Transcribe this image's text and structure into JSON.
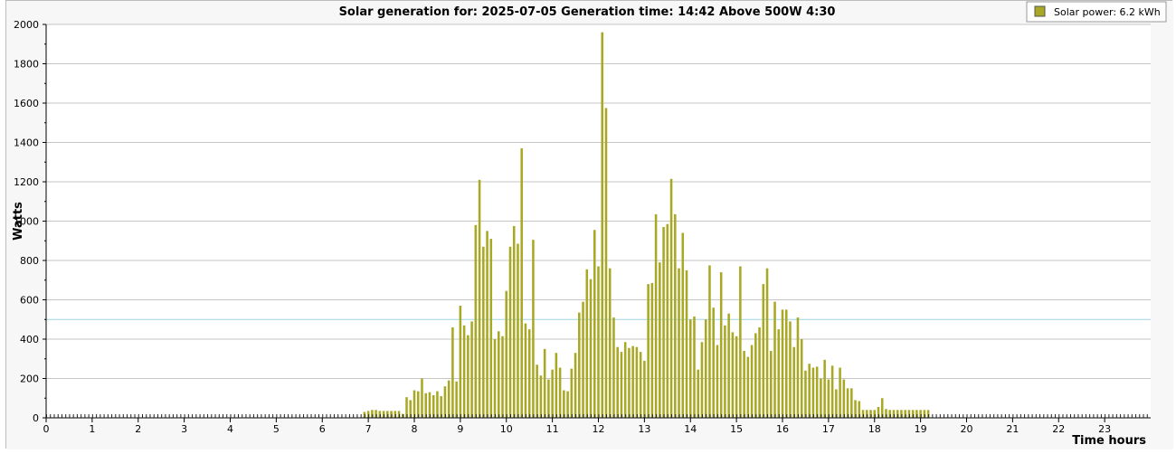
{
  "chart_data": {
    "type": "bar",
    "title": "Solar generation for: 2025-07-05 Generation time: 14:42 Above 500W 4:30",
    "xlabel": "Time hours",
    "ylabel": "Watts",
    "xlim": [
      0,
      24
    ],
    "ylim": [
      0,
      2000
    ],
    "x_ticks": [
      0,
      1,
      2,
      3,
      4,
      5,
      6,
      7,
      8,
      9,
      10,
      11,
      12,
      13,
      14,
      15,
      16,
      17,
      18,
      19,
      20,
      21,
      22,
      23
    ],
    "y_ticks": [
      0,
      200,
      400,
      600,
      800,
      1000,
      1200,
      1400,
      1600,
      1800,
      2000
    ],
    "grid": true,
    "threshold_line": 500,
    "legend": {
      "position": "top-right",
      "entries": [
        {
          "label": "Solar power: 6.2 kWh",
          "color": "#a8a824"
        }
      ]
    },
    "series": [
      {
        "name": "Solar power: 6.2 kWh",
        "color": "#a8a824",
        "interval_minutes": 5,
        "start": "06:55",
        "values": [
          30,
          35,
          40,
          40,
          35,
          35,
          35,
          35,
          35,
          35,
          20,
          105,
          90,
          140,
          135,
          200,
          125,
          130,
          115,
          135,
          110,
          160,
          190,
          460,
          185,
          570,
          470,
          420,
          490,
          980,
          1210,
          870,
          950,
          910,
          400,
          440,
          415,
          645,
          870,
          975,
          885,
          1370,
          480,
          450,
          905,
          270,
          215,
          350,
          195,
          245,
          330,
          255,
          140,
          135,
          250,
          330,
          535,
          590,
          755,
          705,
          955,
          770,
          1960,
          1575,
          760,
          510,
          360,
          335,
          385,
          355,
          365,
          360,
          335,
          290,
          680,
          685,
          1035,
          790,
          970,
          985,
          1215,
          1035,
          760,
          940,
          750,
          500,
          515,
          245,
          385,
          500,
          775,
          560,
          370,
          740,
          470,
          530,
          435,
          415,
          770,
          340,
          310,
          370,
          430,
          460,
          680,
          760,
          340,
          590,
          450,
          550,
          550,
          490,
          360,
          510,
          400,
          240,
          275,
          255,
          260,
          200,
          295,
          195,
          265,
          145,
          255,
          195,
          150,
          150,
          90,
          85,
          40,
          40,
          40,
          40,
          55,
          100,
          45,
          40,
          40,
          40,
          40,
          40,
          40,
          40,
          40,
          40,
          40,
          40
        ]
      }
    ]
  }
}
